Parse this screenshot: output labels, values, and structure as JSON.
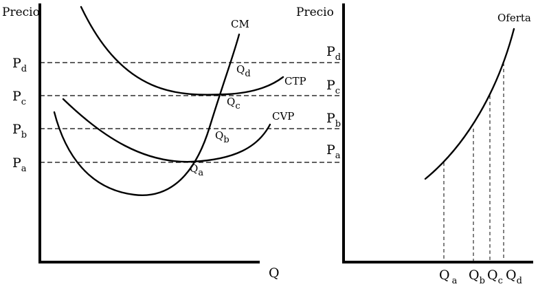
{
  "left_panel": {
    "y_axis_title": "Precio",
    "x_axis_title": "Q",
    "curves": {
      "cm": "CM",
      "ctp": "CTP",
      "cvp": "CVP"
    },
    "price_levels": [
      {
        "main": "P",
        "sub": "a"
      },
      {
        "main": "P",
        "sub": "b"
      },
      {
        "main": "P",
        "sub": "c"
      },
      {
        "main": "P",
        "sub": "d"
      }
    ],
    "intersection_points": [
      {
        "main": "Q",
        "sub": "a"
      },
      {
        "main": "Q",
        "sub": "b"
      },
      {
        "main": "Q",
        "sub": "c"
      },
      {
        "main": "Q",
        "sub": "d"
      }
    ]
  },
  "right_panel": {
    "y_axis_title": "Precio",
    "curve_label": "Oferta",
    "price_levels": [
      {
        "main": "P",
        "sub": "a"
      },
      {
        "main": "P",
        "sub": "b"
      },
      {
        "main": "P",
        "sub": "c"
      },
      {
        "main": "P",
        "sub": "d"
      }
    ],
    "quantity_levels": [
      {
        "main": "Q",
        "sub": "a"
      },
      {
        "main": "Q",
        "sub": "b"
      },
      {
        "main": "Q",
        "sub": "c"
      },
      {
        "main": "Q",
        "sub": "d"
      }
    ]
  }
}
